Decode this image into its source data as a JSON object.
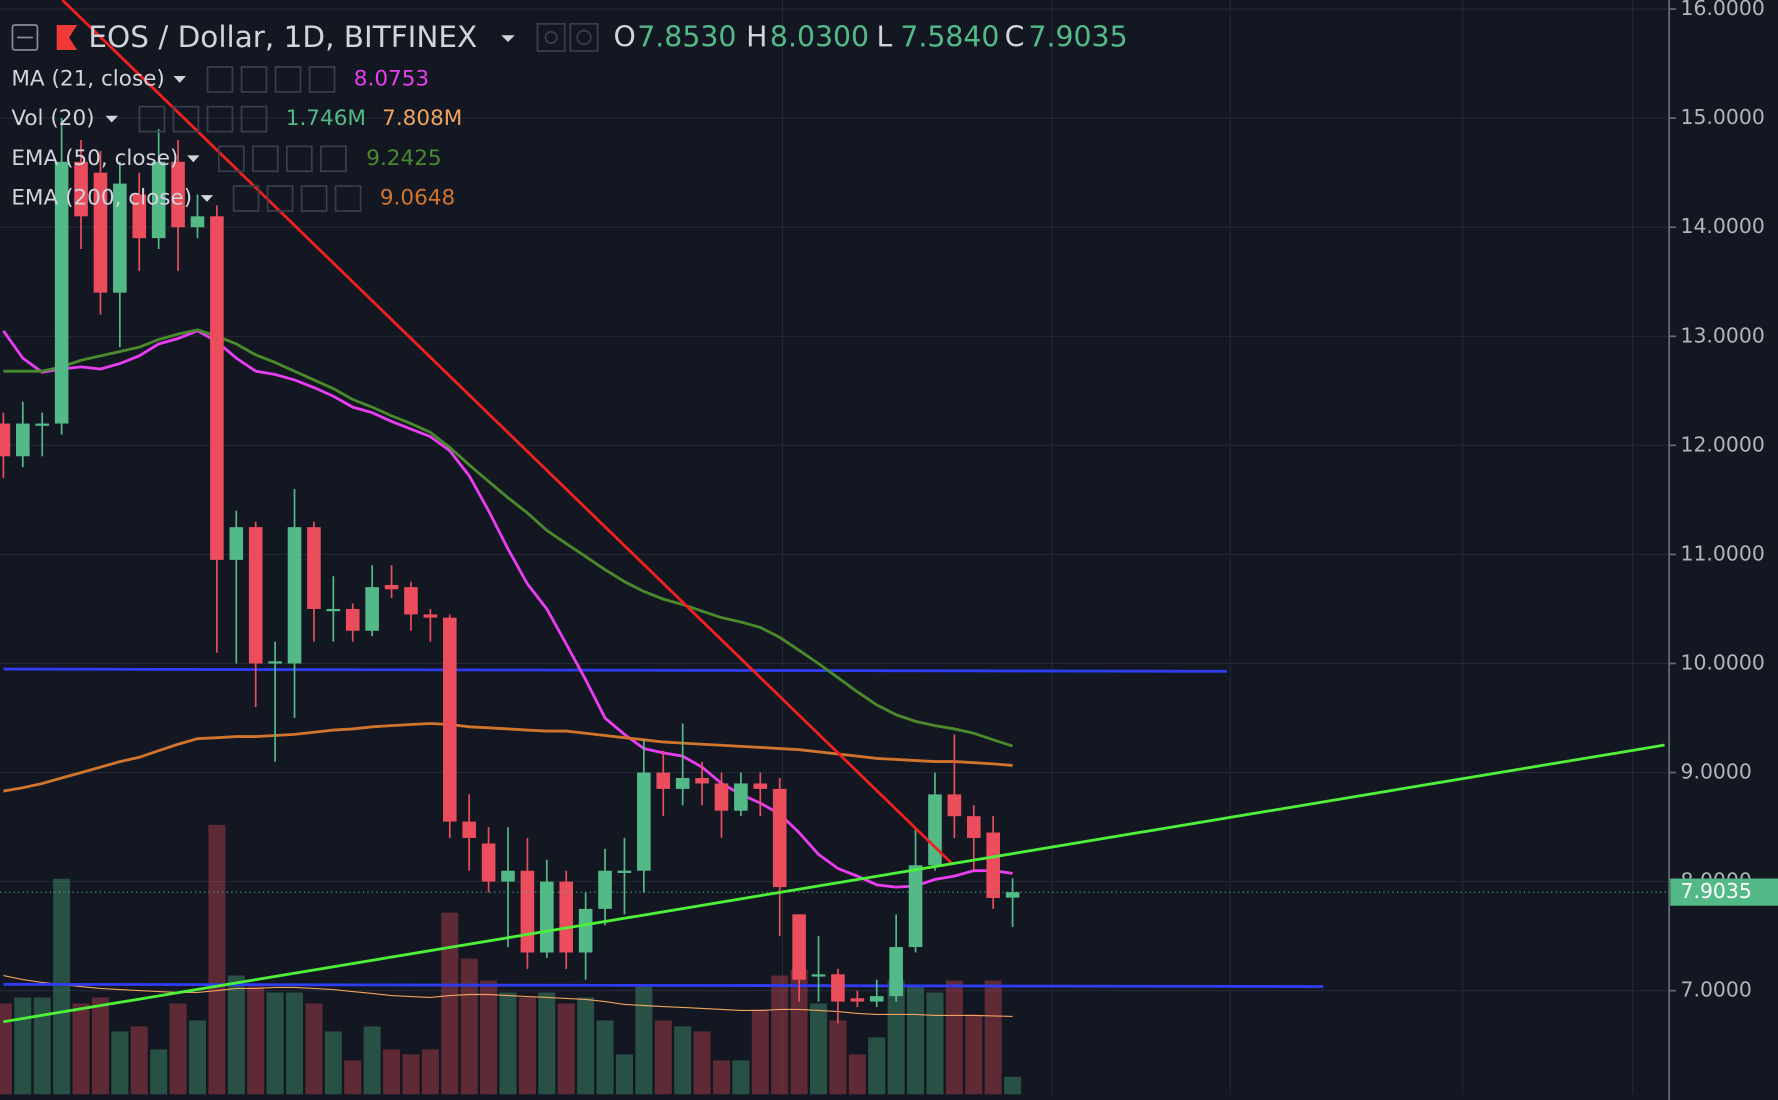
{
  "chart_data": {
    "type": "candlestick",
    "title": "EOS / Dollar, 1D, BITFINEX",
    "ohlc_legend": [
      {
        "key": "O",
        "label": "7.8530"
      },
      {
        "key": "H",
        "label": "8.0300"
      },
      {
        "key": "L",
        "label": "7.5840"
      },
      {
        "key": "C",
        "label": "7.9035"
      }
    ],
    "up_color": "#53b987",
    "down_color": "#eb4d5c",
    "open": [
      12.2,
      11.9,
      12.2,
      12.2,
      14.6,
      14.5,
      13.4,
      14.3,
      13.9,
      14.6,
      14.0,
      14.1,
      10.95,
      11.25,
      10.0,
      10.0,
      11.25,
      10.5,
      10.5,
      10.3,
      10.72,
      10.7,
      10.45,
      10.42,
      8.55,
      8.35,
      8.0,
      8.1,
      7.35,
      8.0,
      7.35,
      7.75,
      8.1,
      8.1,
      9.0,
      8.85,
      8.95,
      8.9,
      8.65,
      8.9,
      8.85,
      7.7,
      7.15,
      7.15,
      6.93,
      6.9,
      6.95,
      7.4,
      8.15,
      8.8,
      8.6,
      8.45,
      7.853
    ],
    "high": [
      12.3,
      12.4,
      12.3,
      15.0,
      14.8,
      14.7,
      14.6,
      14.5,
      14.9,
      14.8,
      14.3,
      14.2,
      11.4,
      11.3,
      10.2,
      11.6,
      11.3,
      10.8,
      10.55,
      10.9,
      10.9,
      10.75,
      10.5,
      10.45,
      8.8,
      8.5,
      8.5,
      8.4,
      8.2,
      8.1,
      7.9,
      8.3,
      8.4,
      9.3,
      9.2,
      9.45,
      9.1,
      9.0,
      9.0,
      9.0,
      8.95,
      7.7,
      7.5,
      7.2,
      7.0,
      7.1,
      7.7,
      8.5,
      9.0,
      9.35,
      8.7,
      8.6,
      8.03
    ],
    "low": [
      11.7,
      11.8,
      11.9,
      12.1,
      13.8,
      13.2,
      12.9,
      13.6,
      13.8,
      13.6,
      13.9,
      10.1,
      10.0,
      9.6,
      9.1,
      9.5,
      10.2,
      10.2,
      10.2,
      10.25,
      10.6,
      10.3,
      10.2,
      8.4,
      8.1,
      7.9,
      7.4,
      7.2,
      7.3,
      7.2,
      7.1,
      7.6,
      7.7,
      7.9,
      8.6,
      8.7,
      8.7,
      8.4,
      8.6,
      8.6,
      7.5,
      6.9,
      6.9,
      6.7,
      6.85,
      6.85,
      6.9,
      7.35,
      8.1,
      8.4,
      8.1,
      7.75,
      7.584
    ],
    "close": [
      11.9,
      12.2,
      12.2,
      14.6,
      14.1,
      13.4,
      14.4,
      13.9,
      14.6,
      14.0,
      14.1,
      10.95,
      11.25,
      10.0,
      10.02,
      11.25,
      10.5,
      10.5,
      10.3,
      10.7,
      10.68,
      10.45,
      10.42,
      8.55,
      8.4,
      8.0,
      8.1,
      7.35,
      8.0,
      7.35,
      7.75,
      8.1,
      8.1,
      9.0,
      8.85,
      8.95,
      8.9,
      8.65,
      8.9,
      8.85,
      7.95,
      7.1,
      7.15,
      6.9,
      6.9,
      6.95,
      7.4,
      8.15,
      8.8,
      8.6,
      8.4,
      7.85,
      7.9035
    ],
    "series": [
      {
        "name": "MA (21, close)",
        "color": "#e83ef0",
        "values": [
          13.05,
          12.8,
          12.67,
          12.7,
          12.72,
          12.7,
          12.75,
          12.82,
          12.93,
          12.98,
          13.05,
          12.95,
          12.8,
          12.68,
          12.65,
          12.6,
          12.53,
          12.45,
          12.35,
          12.3,
          12.22,
          12.15,
          12.08,
          11.95,
          11.72,
          11.4,
          11.05,
          10.73,
          10.5,
          10.18,
          9.85,
          9.5,
          9.35,
          9.22,
          9.18,
          9.15,
          9.05,
          8.9,
          8.8,
          8.72,
          8.62,
          8.45,
          8.25,
          8.12,
          8.05,
          7.97,
          7.95,
          7.96,
          8.02,
          8.05,
          8.1,
          8.1,
          8.0753
        ]
      },
      {
        "name": "EMA (50, close)",
        "color": "#4a8a2c",
        "values": [
          12.68,
          12.68,
          12.68,
          12.72,
          12.78,
          12.82,
          12.86,
          12.9,
          12.97,
          13.02,
          13.06,
          13.0,
          12.93,
          12.83,
          12.76,
          12.68,
          12.6,
          12.52,
          12.42,
          12.35,
          12.27,
          12.2,
          12.12,
          11.98,
          11.82,
          11.67,
          11.52,
          11.38,
          11.22,
          11.1,
          10.98,
          10.86,
          10.75,
          10.66,
          10.59,
          10.54,
          10.48,
          10.42,
          10.38,
          10.33,
          10.24,
          10.12,
          10.0,
          9.87,
          9.74,
          9.62,
          9.53,
          9.47,
          9.43,
          9.4,
          9.36,
          9.3,
          9.2425
        ]
      },
      {
        "name": "EMA (200, close)",
        "color": "#d2752c",
        "values": [
          8.83,
          8.86,
          8.9,
          8.95,
          9.0,
          9.05,
          9.1,
          9.14,
          9.2,
          9.26,
          9.31,
          9.32,
          9.33,
          9.33,
          9.34,
          9.35,
          9.37,
          9.39,
          9.4,
          9.42,
          9.43,
          9.44,
          9.45,
          9.44,
          9.42,
          9.41,
          9.4,
          9.39,
          9.38,
          9.38,
          9.36,
          9.34,
          9.32,
          9.3,
          9.28,
          9.27,
          9.26,
          9.25,
          9.24,
          9.23,
          9.22,
          9.21,
          9.19,
          9.17,
          9.15,
          9.13,
          9.12,
          9.11,
          9.1,
          9.1,
          9.09,
          9.08,
          9.0648
        ]
      }
    ],
    "volume": {
      "name": "Vol (20)",
      "values": [
        9.1,
        9.7,
        9.7,
        21.6,
        9.1,
        9.7,
        6.3,
        6.8,
        4.5,
        9.1,
        7.4,
        27.0,
        11.9,
        10.8,
        10.2,
        10.2,
        9.1,
        6.3,
        3.4,
        6.8,
        4.5,
        4.0,
        4.5,
        18.2,
        13.6,
        11.4,
        10.2,
        9.7,
        10.2,
        9.1,
        9.7,
        7.4,
        4.0,
        10.8,
        7.4,
        6.8,
        6.3,
        3.4,
        3.4,
        8.5,
        11.9,
        12.5,
        9.1,
        7.4,
        4.0,
        5.7,
        11.4,
        10.8,
        10.2,
        11.4,
        8.0,
        11.4,
        1.746
      ],
      "last_value_label": "1.746M",
      "ma_values": [
        11.9,
        11.5,
        11.2,
        11.0,
        10.8,
        10.6,
        10.5,
        10.4,
        10.3,
        10.2,
        10.2,
        10.4,
        10.6,
        10.6,
        10.7,
        10.7,
        10.6,
        10.5,
        10.3,
        10.1,
        9.9,
        9.8,
        9.7,
        9.9,
        10.0,
        10.0,
        9.9,
        9.8,
        9.7,
        9.6,
        9.5,
        9.3,
        9.0,
        8.9,
        8.8,
        8.7,
        8.6,
        8.5,
        8.4,
        8.4,
        8.5,
        8.5,
        8.4,
        8.3,
        8.1,
        8.0,
        8.0,
        8.0,
        7.9,
        7.9,
        7.9,
        7.85,
        7.808
      ],
      "ma_last_value_label": "7.808M",
      "ma_color": "#f0a35e"
    },
    "ylim": [
      6.05,
      16.083
    ],
    "yticks": [
      {
        "value": 7,
        "label": "7.0000"
      },
      {
        "value": 8,
        "label": "8.0000"
      },
      {
        "value": 9,
        "label": "9.0000"
      },
      {
        "value": 10,
        "label": "10.0000"
      },
      {
        "value": 11,
        "label": "11.0000"
      },
      {
        "value": 12,
        "label": "12.0000"
      },
      {
        "value": 13,
        "label": "13.0000"
      },
      {
        "value": 14,
        "label": "14.0000"
      },
      {
        "value": 15,
        "label": "15.0000"
      },
      {
        "value": 16,
        "label": "16.0000"
      }
    ],
    "grid": true
  }
}
